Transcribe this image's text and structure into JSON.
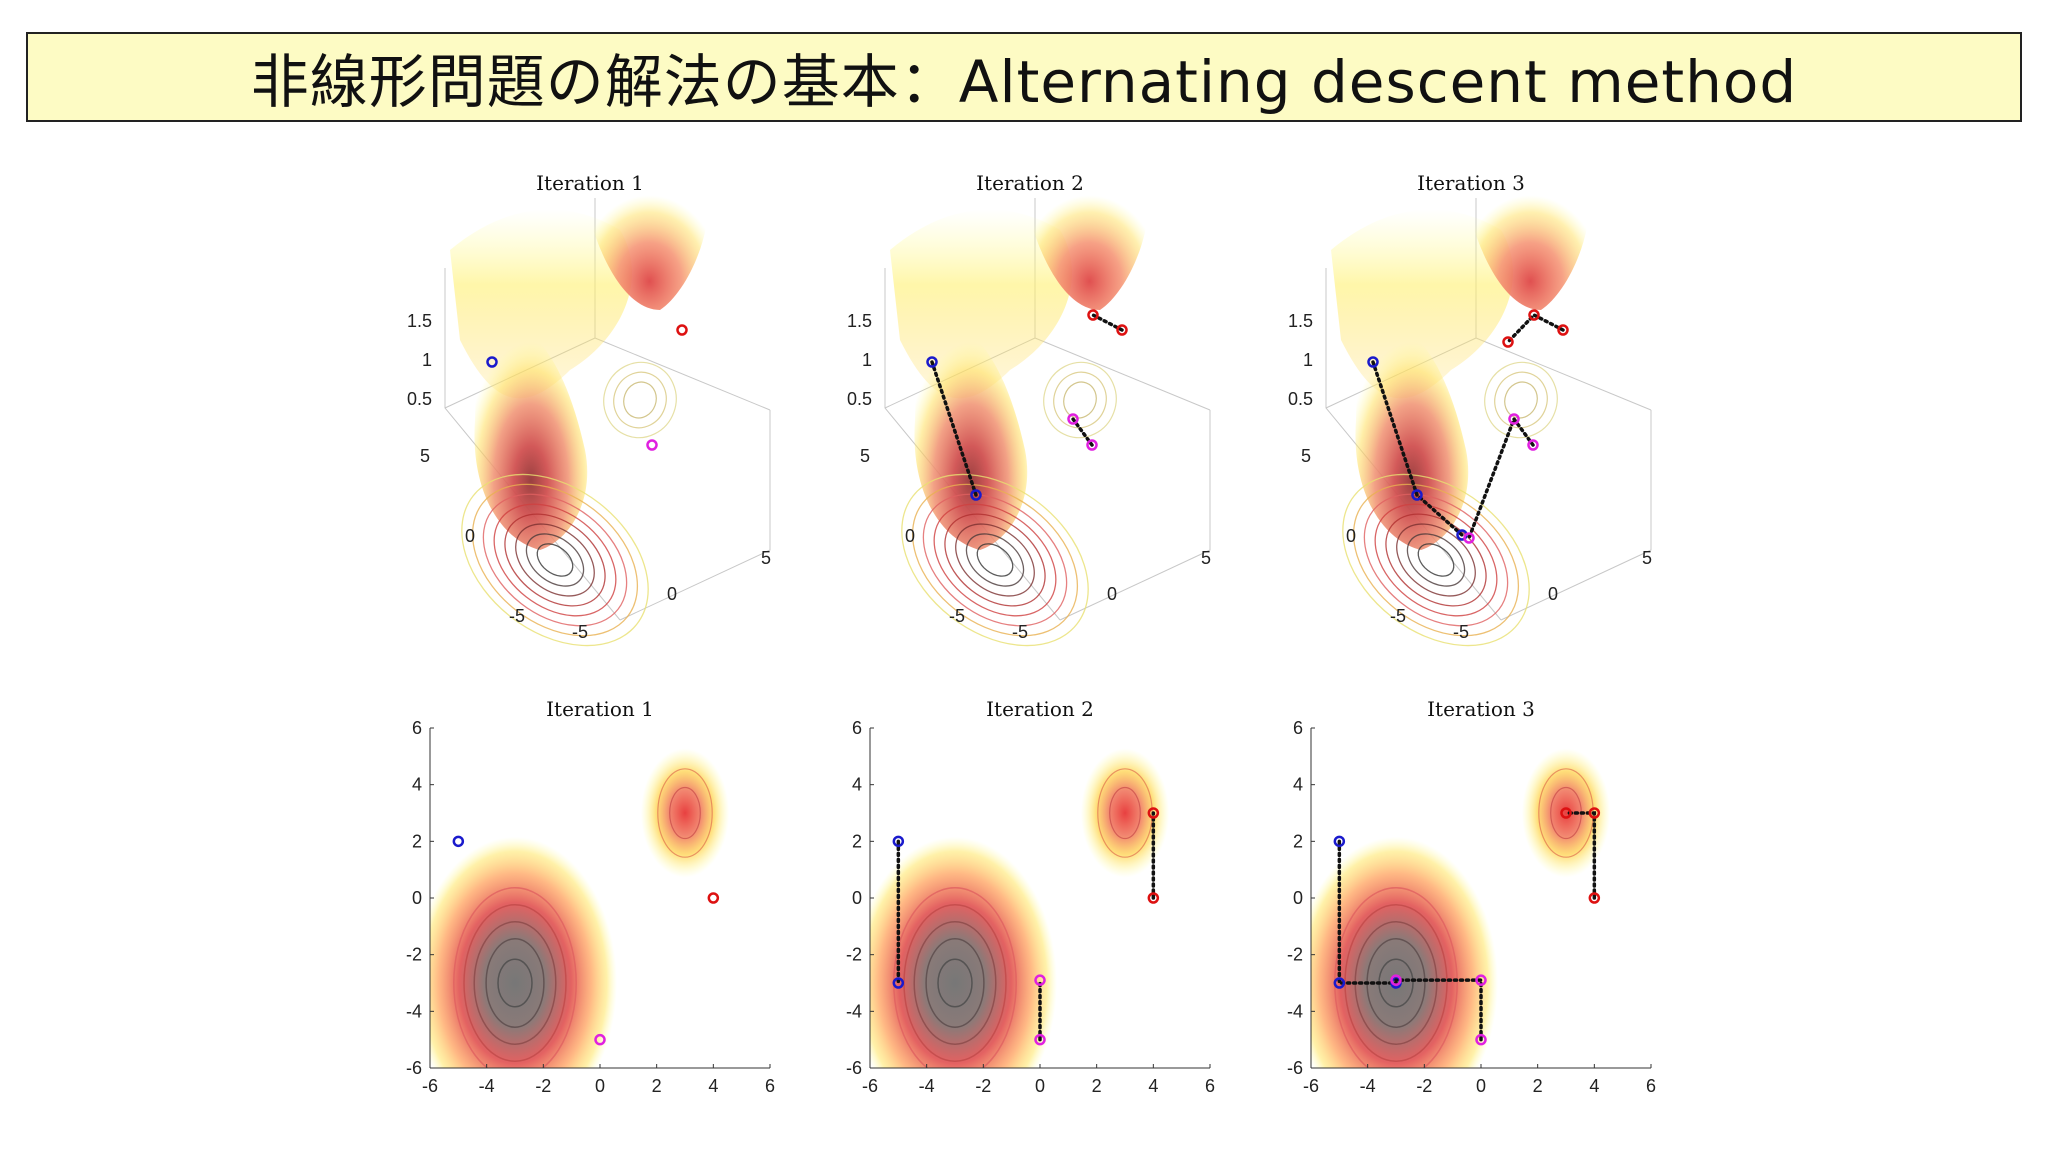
{
  "slide": {
    "title": "非線形問題の解法の基本：Alternating descent method"
  },
  "chart_data": [
    {
      "type": "surface3d",
      "title": "Iteration 1",
      "xticks": [
        "-5",
        "0",
        "5"
      ],
      "yticks": [
        "-5",
        "0",
        "5"
      ],
      "zticks": [
        "0.5",
        "1",
        "1.5"
      ],
      "zlim": [
        0.5,
        1.5
      ]
    },
    {
      "type": "surface3d",
      "title": "Iteration 2",
      "xticks": [
        "-5",
        "0",
        "5"
      ],
      "yticks": [
        "-5",
        "0",
        "5"
      ],
      "zticks": [
        "0.5",
        "1",
        "1.5"
      ],
      "zlim": [
        0.5,
        1.5
      ]
    },
    {
      "type": "surface3d",
      "title": "Iteration 3",
      "xticks": [
        "-5",
        "0",
        "5"
      ],
      "yticks": [
        "-5",
        "0",
        "5"
      ],
      "zticks": [
        "0.5",
        "1",
        "1.5"
      ],
      "zlim": [
        0.5,
        1.5
      ]
    },
    {
      "type": "scatter",
      "title": "Iteration 1",
      "xlim": [
        -6,
        6
      ],
      "ylim": [
        -6,
        6
      ],
      "xticks": [
        "-6",
        "-4",
        "-2",
        "0",
        "2",
        "4",
        "6"
      ],
      "yticks": [
        "-6",
        "-4",
        "-2",
        "0",
        "2",
        "4",
        "6"
      ],
      "minima": [
        {
          "x": -3,
          "y": -3
        },
        {
          "x": 3,
          "y": 3
        }
      ],
      "series": [
        {
          "color": "#1a1acc",
          "points": [
            [
              -5,
              2
            ]
          ]
        },
        {
          "color": "#dd1111",
          "points": [
            [
              4,
              0
            ]
          ]
        },
        {
          "color": "#e020e0",
          "points": [
            [
              0,
              -5
            ]
          ]
        }
      ]
    },
    {
      "type": "line",
      "title": "Iteration 2",
      "xlim": [
        -6,
        6
      ],
      "ylim": [
        -6,
        6
      ],
      "xticks": [
        "-6",
        "-4",
        "-2",
        "0",
        "2",
        "4",
        "6"
      ],
      "yticks": [
        "-6",
        "-4",
        "-2",
        "0",
        "2",
        "4",
        "6"
      ],
      "minima": [
        {
          "x": -3,
          "y": -3
        },
        {
          "x": 3,
          "y": 3
        }
      ],
      "series": [
        {
          "color": "#1a1acc",
          "points": [
            [
              -5,
              2
            ],
            [
              -5,
              -3
            ]
          ]
        },
        {
          "color": "#dd1111",
          "points": [
            [
              4,
              0
            ],
            [
              4,
              3
            ]
          ]
        },
        {
          "color": "#e020e0",
          "points": [
            [
              0,
              -5
            ],
            [
              0,
              -2.9
            ]
          ]
        }
      ]
    },
    {
      "type": "line",
      "title": "Iteration 3",
      "xlim": [
        -6,
        6
      ],
      "ylim": [
        -6,
        6
      ],
      "xticks": [
        "-6",
        "-4",
        "-2",
        "0",
        "2",
        "4",
        "6"
      ],
      "yticks": [
        "-6",
        "-4",
        "-2",
        "0",
        "2",
        "4",
        "6"
      ],
      "minima": [
        {
          "x": -3,
          "y": -3
        },
        {
          "x": 3,
          "y": 3
        }
      ],
      "series": [
        {
          "color": "#1a1acc",
          "points": [
            [
              -5,
              2
            ],
            [
              -5,
              -3
            ],
            [
              -3,
              -3
            ]
          ]
        },
        {
          "color": "#dd1111",
          "points": [
            [
              4,
              0
            ],
            [
              4,
              3
            ],
            [
              3,
              3
            ]
          ]
        },
        {
          "color": "#e020e0",
          "points": [
            [
              0,
              -5
            ],
            [
              0,
              -2.9
            ],
            [
              -3,
              -2.9
            ]
          ]
        }
      ]
    }
  ]
}
